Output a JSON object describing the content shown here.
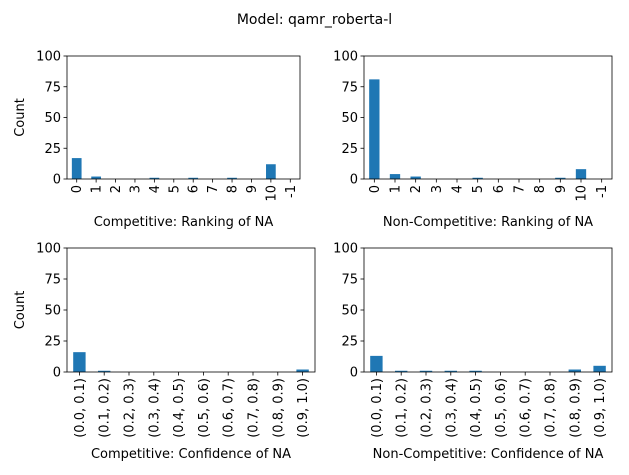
{
  "figure": {
    "suptitle": "Model: qamr_roberta-l",
    "bar_color": "#1f77b4"
  },
  "chart_data": [
    {
      "type": "bar",
      "position": "top-left",
      "categories": [
        "0",
        "1",
        "2",
        "3",
        "4",
        "5",
        "6",
        "7",
        "8",
        "9",
        "10",
        "-1"
      ],
      "values": [
        17,
        2,
        0,
        0,
        1,
        0,
        1,
        0,
        1,
        0,
        12,
        0
      ],
      "title": "",
      "xlabel": "Competitive: Ranking of NA",
      "ylabel": "Count",
      "ylim": [
        0,
        100
      ],
      "yticks": [
        "0",
        "25",
        "50",
        "75",
        "100"
      ],
      "grid": false
    },
    {
      "type": "bar",
      "position": "top-right",
      "categories": [
        "0",
        "1",
        "2",
        "3",
        "4",
        "5",
        "6",
        "7",
        "8",
        "9",
        "10",
        "-1"
      ],
      "values": [
        81,
        4,
        2,
        0,
        0,
        1,
        0,
        0,
        0,
        1,
        8,
        0
      ],
      "title": "",
      "xlabel": "Non-Competitive: Ranking of NA",
      "ylabel": "",
      "ylim": [
        0,
        100
      ],
      "yticks": [
        "0",
        "25",
        "50",
        "75",
        "100"
      ],
      "grid": false
    },
    {
      "type": "bar",
      "position": "bottom-left",
      "categories": [
        "(0.0, 0.1)",
        "(0.1, 0.2)",
        "(0.2, 0.3)",
        "(0.3, 0.4)",
        "(0.4, 0.5)",
        "(0.5, 0.6)",
        "(0.6, 0.7)",
        "(0.7, 0.8)",
        "(0.8, 0.9)",
        "(0.9, 1.0)"
      ],
      "values": [
        16,
        1,
        0,
        0,
        0,
        0,
        0,
        0,
        0,
        2
      ],
      "title": "",
      "xlabel": "Competitive: Confidence of NA",
      "ylabel": "Count",
      "ylim": [
        0,
        100
      ],
      "yticks": [
        "0",
        "25",
        "50",
        "75",
        "100"
      ],
      "grid": false
    },
    {
      "type": "bar",
      "position": "bottom-right",
      "categories": [
        "(0.0, 0.1)",
        "(0.1, 0.2)",
        "(0.2, 0.3)",
        "(0.3, 0.4)",
        "(0.4, 0.5)",
        "(0.5, 0.6)",
        "(0.6, 0.7)",
        "(0.7, 0.8)",
        "(0.8, 0.9)",
        "(0.9, 1.0)"
      ],
      "values": [
        13,
        1,
        1,
        1,
        1,
        0,
        0,
        0,
        2,
        5
      ],
      "title": "",
      "xlabel": "Non-Competitive: Confidence of NA",
      "ylabel": "",
      "ylim": [
        0,
        100
      ],
      "yticks": [
        "0",
        "25",
        "50",
        "75",
        "100"
      ],
      "grid": false
    }
  ]
}
